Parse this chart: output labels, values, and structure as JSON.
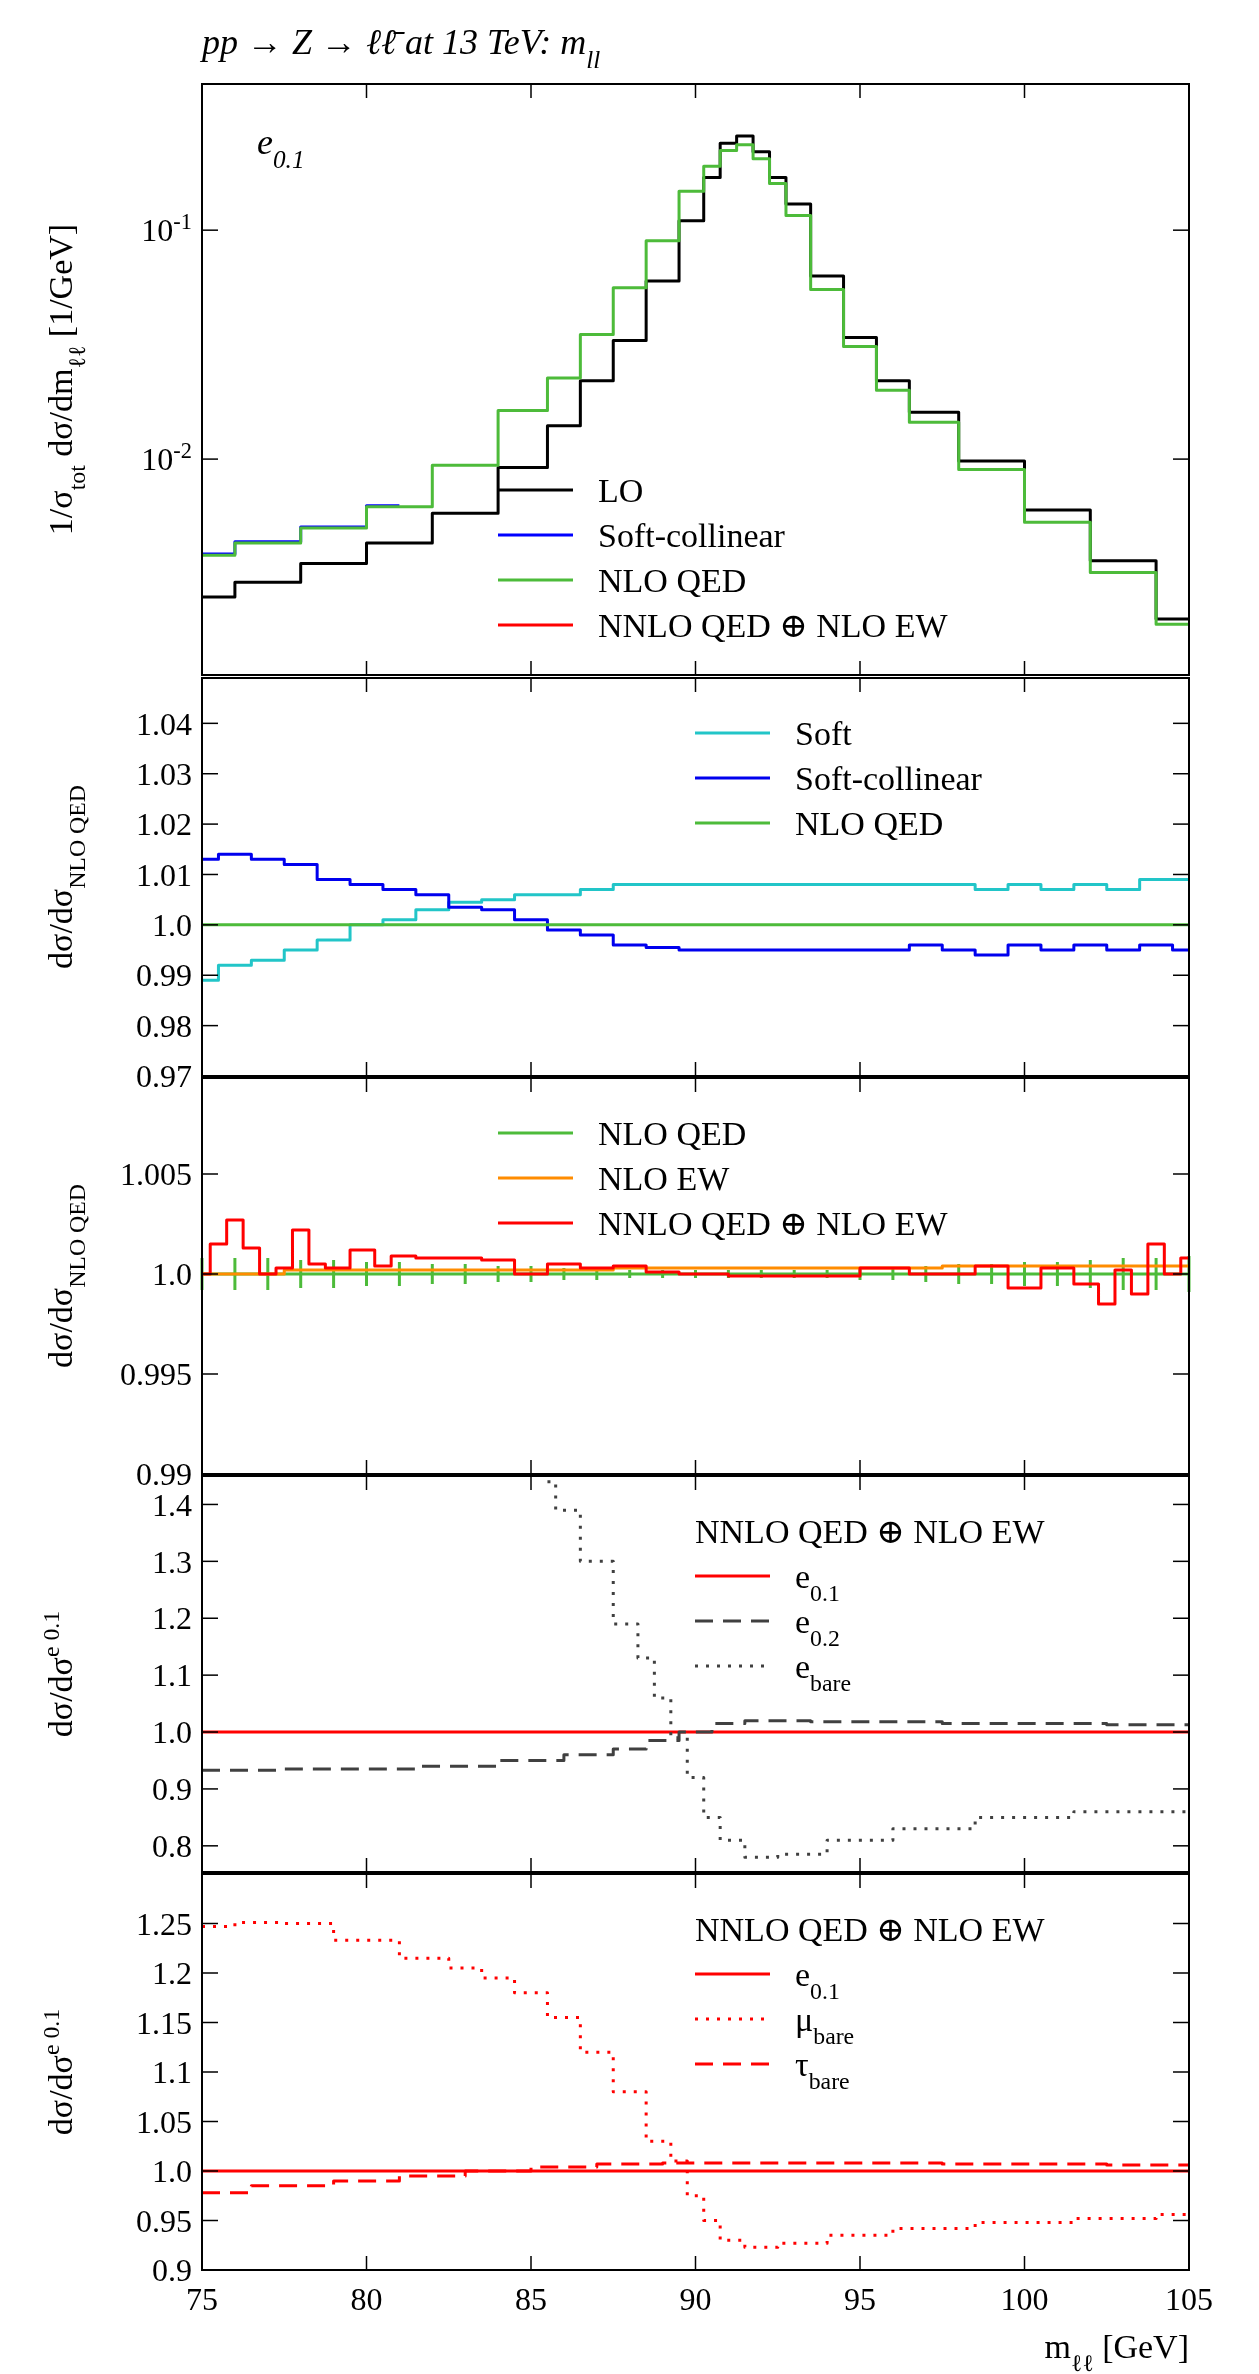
{
  "chart_data": [
    {
      "type": "step",
      "title": "pp → Z → ℓℓ̄ at 13 TeV: m$_{ll}$",
      "ylabel": "1/σ$_{tot}$ dσ/dm$_{ℓℓ}$ [1/GeV]",
      "annotations": [
        "e$_{0.1}$"
      ],
      "xlim": [
        75,
        105
      ],
      "xticks": [
        75,
        80,
        85,
        90,
        95,
        100,
        105
      ],
      "ylim": [
        0.00114,
        0.435
      ],
      "yticks": [
        {
          "value": 0.01,
          "label": "10$^{-2}$"
        },
        {
          "value": 0.1,
          "label": "10$^{-1}$"
        }
      ],
      "log": true,
      "tick_labels": "y",
      "legend": "bottom",
      "x": [
        75,
        77,
        79,
        81,
        83,
        85,
        86,
        87,
        88,
        89,
        90,
        90.5,
        91,
        91.5,
        92,
        92.5,
        93,
        94,
        95,
        96,
        97,
        99,
        101,
        103,
        105
      ],
      "series": [
        {
          "name": "LO",
          "color": "#000000",
          "values": [
            0.0025,
            0.0029,
            0.0035,
            0.0043,
            0.0058,
            0.0092,
            0.014,
            0.022,
            0.033,
            0.06,
            0.11,
            0.17,
            0.24,
            0.258,
            0.22,
            0.17,
            0.13,
            0.063,
            0.034,
            0.022,
            0.016,
            0.0098,
            0.006,
            0.0036,
            0.002
          ]
        },
        {
          "name": "Soft-collinear",
          "color": "#0000ff",
          "values": [
            0.00385,
            0.00436,
            0.00505,
            0.00625,
            null,
            null,
            null,
            null,
            null,
            null,
            null,
            null,
            null,
            null,
            null,
            null,
            null,
            null,
            null,
            null,
            null,
            null,
            null,
            null,
            null
          ]
        },
        {
          "name": "NLO QED",
          "color": "#4dbb3a",
          "values": [
            0.0038,
            0.0043,
            0.005,
            0.0062,
            0.0094,
            0.0163,
            0.0226,
            0.035,
            0.056,
            0.09,
            0.148,
            0.19,
            0.223,
            0.236,
            0.205,
            0.16,
            0.116,
            0.055,
            0.031,
            0.02,
            0.0145,
            0.009,
            0.0053,
            0.0032,
            0.0019
          ]
        },
        {
          "name": "NNLO QED ⊕ NLO EW",
          "color": "#ff0000",
          "values": [
            null,
            null,
            null,
            null,
            null,
            null,
            null,
            null,
            null,
            null,
            null,
            null,
            null,
            null,
            null,
            null,
            null,
            null,
            null,
            null,
            null,
            null,
            null,
            null,
            null
          ]
        }
      ]
    },
    {
      "type": "step",
      "ylabel": "dσ/dσ$_{NLO QED}$",
      "xlim": [
        75,
        105
      ],
      "xticks": [
        75,
        80,
        85,
        90,
        95,
        100,
        105
      ],
      "ylim": [
        0.97,
        1.049
      ],
      "yticks": [
        0.97,
        0.98,
        0.99,
        {
          "value": 1,
          "label": "1.0"
        },
        1.01,
        1.02,
        1.03,
        1.04
      ],
      "tick_labels": "y",
      "legend": "top right",
      "x": [
        75,
        76,
        77,
        78,
        79,
        80,
        81,
        82,
        83,
        84,
        85,
        86,
        87,
        88,
        89,
        90,
        92,
        94,
        96,
        97,
        98,
        99,
        100,
        101,
        102,
        103,
        104,
        105
      ],
      "series": [
        {
          "name": "Soft",
          "color": "#22c5c8",
          "values": [
            0.989,
            0.992,
            0.993,
            0.995,
            0.997,
            1.0,
            1.001,
            1.003,
            1.0045,
            1.005,
            1.006,
            1.006,
            1.007,
            1.008,
            1.008,
            1.008,
            1.008,
            1.008,
            1.008,
            1.008,
            1.008,
            1.007,
            1.008,
            1.007,
            1.008,
            1.007,
            1.009,
            1.009
          ]
        },
        {
          "name": "Soft-collinear",
          "color": "#0000ee",
          "values": [
            1.013,
            1.014,
            1.013,
            1.012,
            1.009,
            1.008,
            1.007,
            1.006,
            1.0035,
            1.003,
            1.001,
            0.999,
            0.998,
            0.996,
            0.9955,
            0.995,
            0.995,
            0.995,
            0.995,
            0.996,
            0.995,
            0.994,
            0.996,
            0.995,
            0.996,
            0.995,
            0.996,
            0.995
          ]
        },
        {
          "name": "NLO QED",
          "color": "#4dbb3a",
          "x": [
            75,
            105
          ],
          "values": [
            1,
            1
          ]
        }
      ]
    },
    {
      "type": "step",
      "ylabel": "dσ/dσ$_{NLO QED}$",
      "xlim": [
        75,
        105
      ],
      "xticks": [
        75,
        80,
        85,
        90,
        95,
        100,
        105
      ],
      "ylim": [
        0.99,
        1.0098
      ],
      "yticks": [
        0.99,
        0.995,
        {
          "value": 1,
          "label": "1.0"
        },
        1.005
      ],
      "tick_labels": "y",
      "legend": "top",
      "series": [
        {
          "name": "NLO QED",
          "color": "#4dbb3a",
          "x": [
            75,
            76,
            77,
            78,
            79,
            80,
            81,
            82,
            83,
            84,
            85,
            86,
            87,
            88,
            89,
            90,
            91,
            92,
            93,
            94,
            95,
            96,
            97,
            98,
            99,
            100,
            101,
            102,
            103,
            104,
            105
          ],
          "values": [
            1,
            1,
            1,
            1,
            1,
            1,
            1,
            1,
            1,
            1,
            1,
            1,
            1,
            1,
            1,
            1,
            1,
            1,
            1,
            1,
            1,
            1,
            1,
            1,
            1,
            1,
            1,
            1,
            1,
            1,
            1
          ],
          "errors": [
            0.0008,
            0.0008,
            0.0008,
            0.0007,
            0.0007,
            0.0006,
            0.0006,
            0.0005,
            0.0005,
            0.0004,
            0.0004,
            0.0003,
            0.0003,
            0.0002,
            0.0002,
            0.0002,
            0.0002,
            0.0002,
            0.0002,
            0.0002,
            0.0003,
            0.0003,
            0.0004,
            0.0005,
            0.0005,
            0.0006,
            0.0006,
            0.0007,
            0.0008,
            0.0008,
            0.0009
          ]
        },
        {
          "name": "NLO EW",
          "color": "#ff8c00",
          "x": [
            75,
            80,
            85,
            90,
            95,
            100,
            105
          ],
          "values": [
            1.0,
            1.0002,
            1.0002,
            1.0003,
            1.0003,
            1.0004,
            1.0004
          ]
        },
        {
          "name": "NNLO QED ⊕ NLO EW",
          "color": "#ff0000",
          "x": [
            75,
            75.5,
            76,
            76.5,
            77,
            77.5,
            78,
            78.5,
            79,
            80,
            80.5,
            81,
            82,
            83,
            84,
            85,
            86,
            87,
            88,
            89,
            90,
            92,
            94,
            96,
            97,
            98,
            99,
            100,
            101,
            102,
            102.5,
            103,
            103.5,
            104,
            104.5,
            105
          ],
          "values": [
            1.0,
            1.0015,
            1.0027,
            1.0013,
            1.0,
            1.0003,
            1.0022,
            1.0005,
            1.0003,
            1.0012,
            1.0004,
            1.0009,
            1.0008,
            1.0008,
            1.0007,
            1.0,
            1.0005,
            1.0003,
            1.0004,
            1.0001,
            1.0,
            0.9999,
            0.9999,
            1.0003,
            1.0,
            1.0,
            1.0004,
            0.9993,
            1.0003,
            0.9995,
            0.9985,
            1.0002,
            0.999,
            1.0015,
            1.0,
            1.0008
          ]
        }
      ]
    },
    {
      "type": "step",
      "ylabel": "dσ/dσ$^{e 0.1}$",
      "xlim": [
        75,
        105
      ],
      "xticks": [
        75,
        80,
        85,
        90,
        95,
        100,
        105
      ],
      "ylim": [
        0.754,
        1.45
      ],
      "yticks": [
        {
          "value": 0.8,
          "label": "0.8"
        },
        {
          "value": 0.9,
          "label": "0.9"
        },
        {
          "value": 1,
          "label": "1.0"
        },
        {
          "value": 1.1,
          "label": "1.1"
        },
        {
          "value": 1.2,
          "label": "1.2"
        },
        {
          "value": 1.3,
          "label": "1.3"
        },
        {
          "value": 1.4,
          "label": "1.4"
        }
      ],
      "tick_labels": "y",
      "legend": "top right",
      "legend_title": "NNLO QED ⊕ NLO EW",
      "series": [
        {
          "name": "e$_{0.1}$",
          "color": "#ff0000",
          "line_style": "solid",
          "x": [
            75,
            105
          ],
          "values": [
            1,
            1
          ]
        },
        {
          "name": "e$_{0.2}$",
          "color": "#404040",
          "line_style": "dashed",
          "x": [
            75,
            80,
            83,
            85,
            87,
            88,
            89,
            90,
            91,
            92,
            95,
            100,
            105
          ],
          "values": [
            0.933,
            0.935,
            0.94,
            0.95,
            0.96,
            0.97,
            0.985,
            1.0,
            1.015,
            1.02,
            1.018,
            1.015,
            1.013
          ]
        },
        {
          "name": "e$_{bare}$",
          "color": "#404040",
          "line_style": "dotted",
          "x": [
            85.5,
            86,
            87,
            88,
            88.5,
            89,
            89.5,
            90,
            90.5,
            91,
            92,
            93,
            95,
            97,
            100,
            103,
            105
          ],
          "values": [
            1.44,
            1.39,
            1.3,
            1.19,
            1.13,
            1.06,
            0.99,
            0.92,
            0.85,
            0.81,
            0.78,
            0.785,
            0.81,
            0.83,
            0.85,
            0.86,
            0.86
          ]
        }
      ]
    },
    {
      "type": "step",
      "xlabel": "m$_{ℓℓ}$ [GeV]",
      "ylabel": "dσ/dσ$^{e 0.1}$",
      "xlim": [
        75,
        105
      ],
      "xticks": [
        75,
        80,
        85,
        90,
        95,
        100,
        105
      ],
      "ylim": [
        0.9,
        1.3
      ],
      "yticks": [
        {
          "value": 0.9,
          "label": "0.9"
        },
        0.95,
        {
          "value": 1,
          "label": "1.0"
        },
        1.05,
        1.1,
        1.15,
        1.2,
        1.25
      ],
      "legend": "top right",
      "legend_title": "NNLO QED ⊕ NLO EW",
      "series": [
        {
          "name": "e$_{0.1}$",
          "color": "#ff0000",
          "line_style": "solid",
          "x": [
            75,
            105
          ],
          "values": [
            1,
            1
          ]
        },
        {
          "name": "μ$_{bare}$",
          "color": "#ff0000",
          "line_style": "dotted",
          "x": [
            75,
            77,
            78,
            80,
            82,
            83,
            84,
            85,
            86,
            87,
            88,
            89,
            89.5,
            90,
            90.5,
            91,
            92,
            93,
            95,
            97,
            100,
            103,
            105
          ],
          "values": [
            1.247,
            1.251,
            1.25,
            1.233,
            1.215,
            1.205,
            1.195,
            1.18,
            1.155,
            1.12,
            1.08,
            1.03,
            1.01,
            0.975,
            0.95,
            0.93,
            0.923,
            0.927,
            0.935,
            0.942,
            0.948,
            0.952,
            0.956
          ]
        },
        {
          "name": "τ$_{bare}$",
          "color": "#ff0000",
          "line_style": "dashed",
          "x": [
            75,
            78,
            80,
            82,
            84,
            86,
            88,
            90,
            95,
            100,
            105
          ],
          "values": [
            0.978,
            0.985,
            0.99,
            0.995,
            1.0,
            1.004,
            1.007,
            1.008,
            1.008,
            1.007,
            1.006
          ]
        }
      ]
    }
  ]
}
